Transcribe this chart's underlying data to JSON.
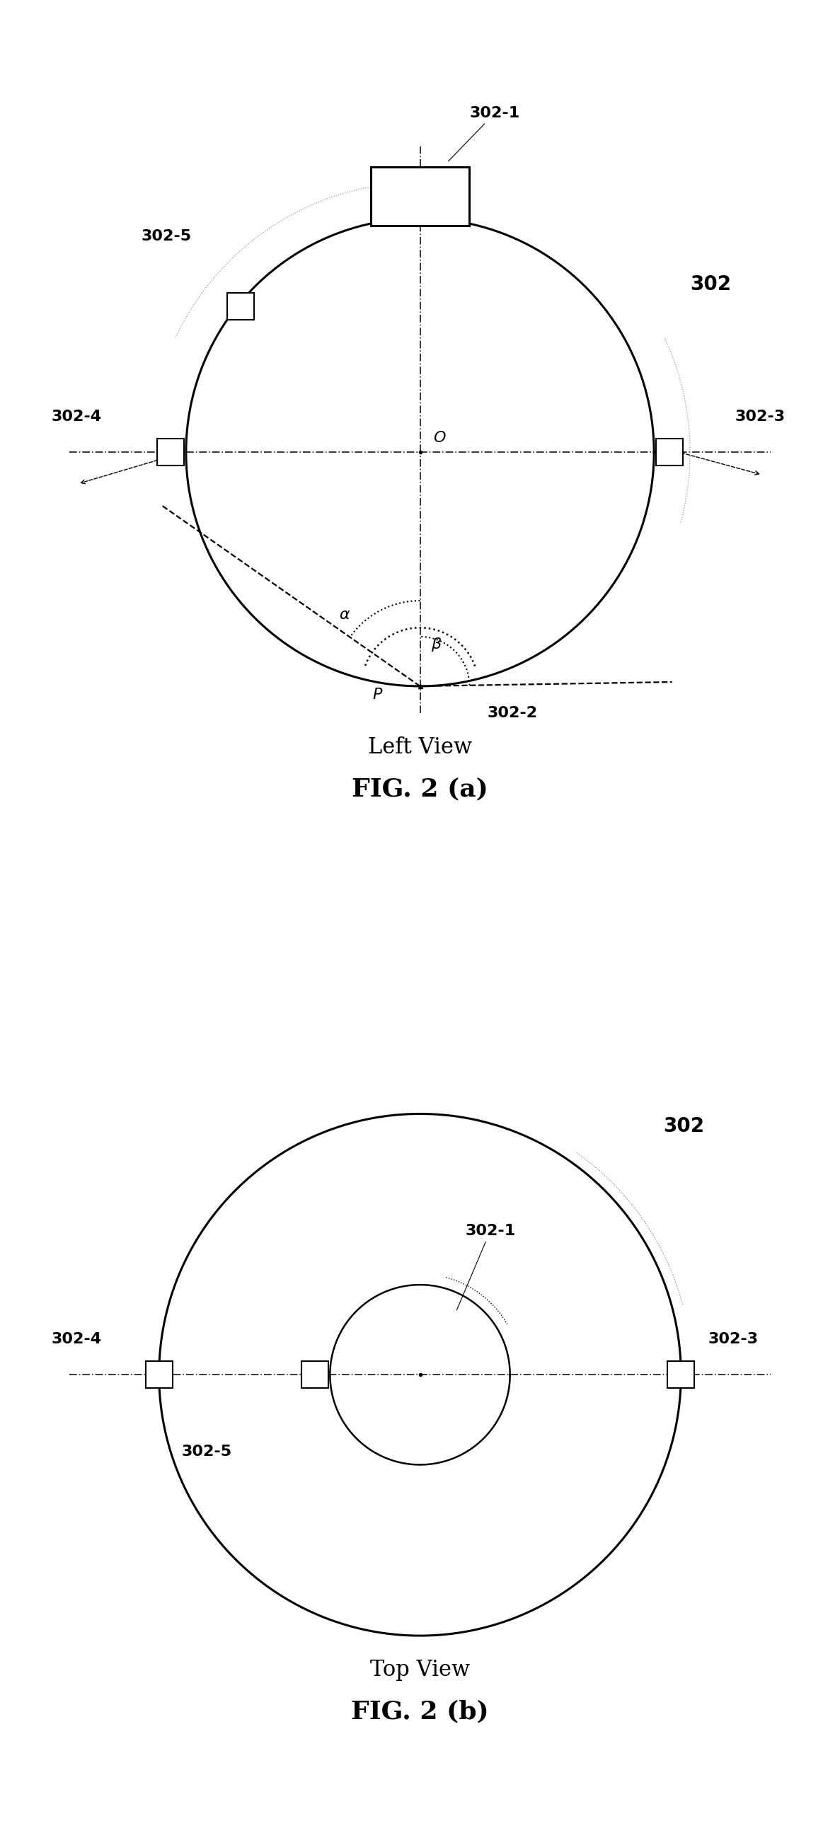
{
  "bg_color": "#ffffff",
  "fig_width": 11.87,
  "fig_height": 26.08,
  "fig_a_title": "Left View",
  "fig_b_title": "Top View",
  "fig_a_label": "FIG. 2 (a)",
  "fig_b_label": "FIG. 2 (b)",
  "label_302": "302",
  "label_302_1": "302-1",
  "label_302_2": "302-2",
  "label_302_3": "302-3",
  "label_302_4": "302-4",
  "label_302_5": "302-5",
  "label_O": "O",
  "label_P": "P",
  "label_alpha": "α",
  "label_beta": "β"
}
